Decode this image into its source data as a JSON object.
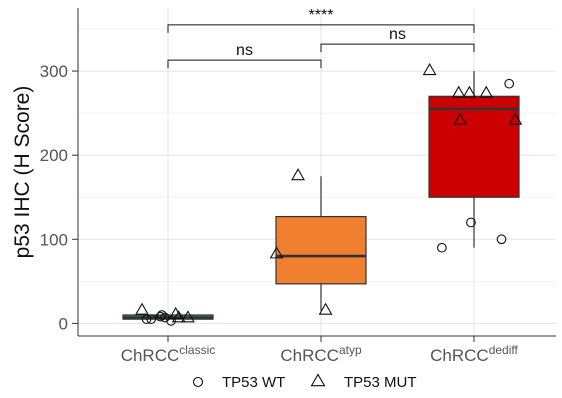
{
  "chart_data": {
    "type": "box",
    "ylabel": "p53 IHC (H Score)",
    "ylim": [
      -15,
      375
    ],
    "yticks": [
      0,
      100,
      200,
      300
    ],
    "grid": true,
    "categories": [
      {
        "base": "ChRCC",
        "sup": "classic"
      },
      {
        "base": "ChRCC",
        "sup": "atyp"
      },
      {
        "base": "ChRCC",
        "sup": "dediff"
      }
    ],
    "boxes": [
      {
        "group": "ChRCC classic",
        "color": "#2e9e4f",
        "whisker_low": 5,
        "q1": 5,
        "median": 7,
        "q3": 10,
        "whisker_high": 10
      },
      {
        "group": "ChRCC atyp",
        "color": "#f08030",
        "whisker_low": 15,
        "q1": 47,
        "median": 80,
        "q3": 127,
        "whisker_high": 175
      },
      {
        "group": "ChRCC dediff",
        "color": "#cc0000",
        "whisker_low": 90,
        "q1": 150,
        "median": 255,
        "q3": 270,
        "whisker_high": 300
      }
    ],
    "points": [
      {
        "group": 0,
        "shape": "triangle",
        "x_offset": -0.17,
        "value": 15
      },
      {
        "group": 0,
        "shape": "circle",
        "x_offset": -0.14,
        "value": 5
      },
      {
        "group": 0,
        "shape": "circle",
        "x_offset": -0.11,
        "value": 5
      },
      {
        "group": 0,
        "shape": "circle",
        "x_offset": -0.05,
        "value": 8
      },
      {
        "group": 0,
        "shape": "circle",
        "x_offset": -0.04,
        "value": 10
      },
      {
        "group": 0,
        "shape": "circle",
        "x_offset": -0.02,
        "value": 7
      },
      {
        "group": 0,
        "shape": "circle",
        "x_offset": 0.02,
        "value": 3
      },
      {
        "group": 0,
        "shape": "triangle",
        "x_offset": 0.05,
        "value": 10
      },
      {
        "group": 0,
        "shape": "triangle",
        "x_offset": 0.07,
        "value": 6
      },
      {
        "group": 0,
        "shape": "triangle",
        "x_offset": 0.13,
        "value": 6
      },
      {
        "group": 1,
        "shape": "triangle",
        "x_offset": -0.15,
        "value": 175
      },
      {
        "group": 1,
        "shape": "triangle",
        "x_offset": -0.29,
        "value": 82
      },
      {
        "group": 1,
        "shape": "triangle",
        "x_offset": 0.03,
        "value": 15
      },
      {
        "group": 2,
        "shape": "triangle",
        "x_offset": -0.29,
        "value": 300
      },
      {
        "group": 2,
        "shape": "triangle",
        "x_offset": -0.1,
        "value": 273
      },
      {
        "group": 2,
        "shape": "triangle",
        "x_offset": -0.03,
        "value": 273
      },
      {
        "group": 2,
        "shape": "triangle",
        "x_offset": 0.08,
        "value": 273
      },
      {
        "group": 2,
        "shape": "triangle",
        "x_offset": -0.09,
        "value": 241
      },
      {
        "group": 2,
        "shape": "triangle",
        "x_offset": 0.27,
        "value": 241
      },
      {
        "group": 2,
        "shape": "circle",
        "x_offset": 0.23,
        "value": 285
      },
      {
        "group": 2,
        "shape": "circle",
        "x_offset": -0.02,
        "value": 120
      },
      {
        "group": 2,
        "shape": "circle",
        "x_offset": -0.21,
        "value": 90
      },
      {
        "group": 2,
        "shape": "circle",
        "x_offset": 0.18,
        "value": 100
      }
    ],
    "significance": [
      {
        "from": 0,
        "to": 1,
        "value": 313,
        "label": "ns"
      },
      {
        "from": 1,
        "to": 2,
        "value": 332,
        "label": "ns"
      },
      {
        "from": 0,
        "to": 2,
        "value": 355,
        "label": "****"
      }
    ],
    "legend": [
      {
        "shape": "circle",
        "label": "TP53 WT"
      },
      {
        "shape": "triangle",
        "label": "TP53 MUT"
      }
    ],
    "legend_position": "bottom"
  }
}
